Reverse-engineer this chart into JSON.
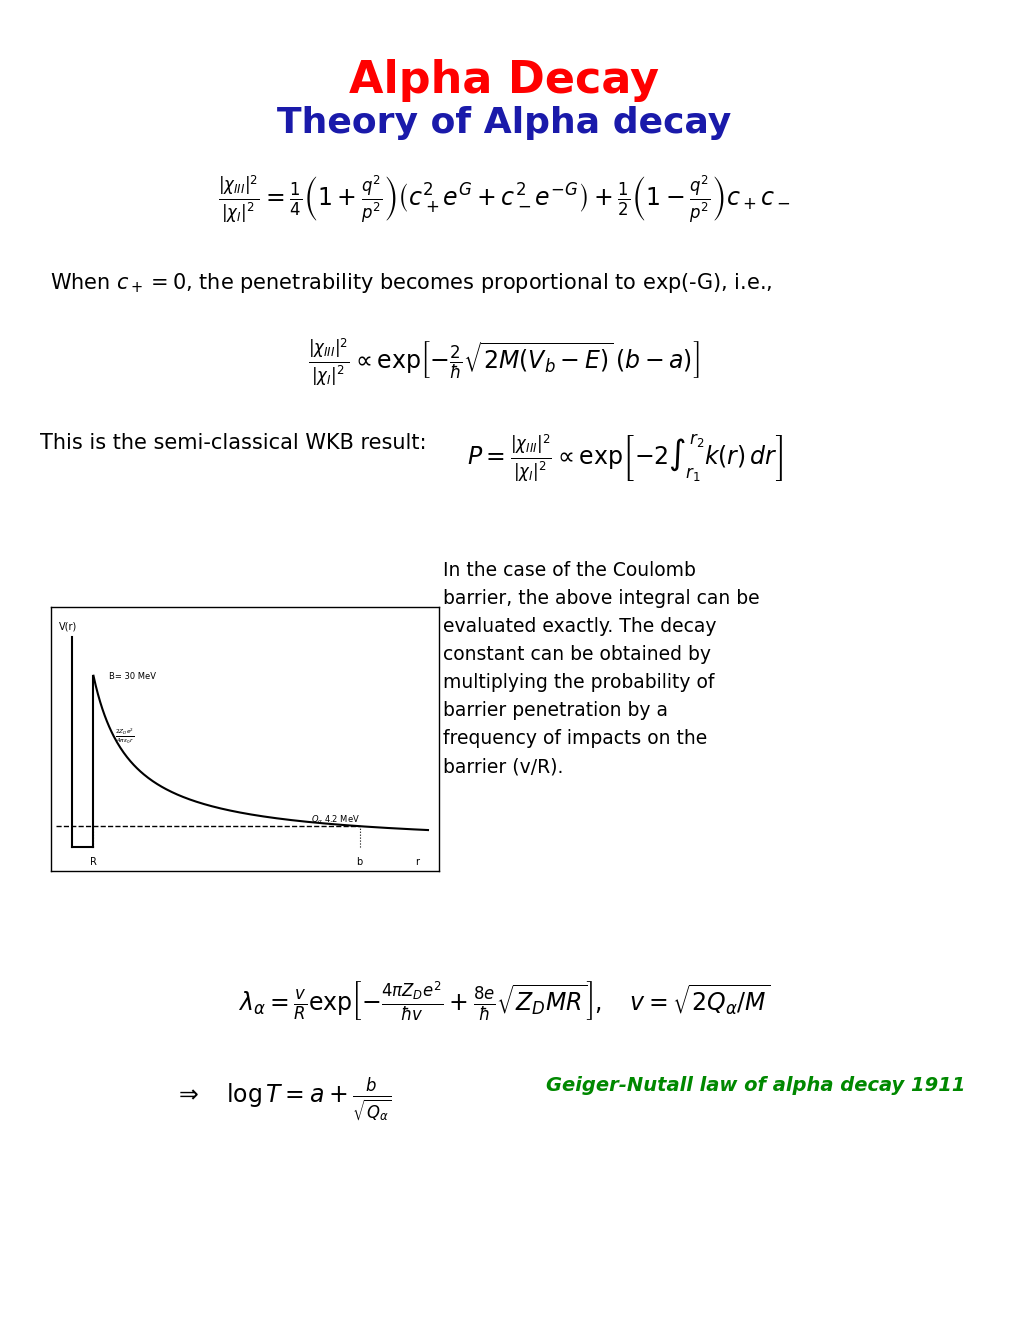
{
  "title1": "Alpha Decay",
  "title2": "Theory of Alpha decay",
  "title1_color": "#FF0000",
  "title2_color": "#1a1aaa",
  "bg_color": "#ffffff",
  "eq1": "\\frac{|\\chi_{III}|^2}{|\\chi_I|^2} = \\frac{1}{4}\\left(1+\\frac{q^2}{p^2}\\right)\\left(c_+^2 e^G + c_-^2 e^{-G}\\right) + \\frac{1}{2}\\left(1-\\frac{q^2}{p^2}\\right)c_+ c_-",
  "text1": "When $c_+=0$, the penetrability becomes proportional to exp(-G), i.e.,",
  "eq2": "\\frac{|\\chi_{III}|^2}{|\\chi_I|^2} \\propto \\exp\\!\\left[-\\frac{2}{\\hbar}\\sqrt{2M(V_b-E)}\\,(b-a)\\right]",
  "text2": "This is the semi-classical WKB result:",
  "eq3": "P = \\frac{|\\chi_{III}|^2}{|\\chi_I|^2} \\propto \\exp\\!\\left[-2\\int_{r_1}^{r_2} k(r)\\,dr\\right]",
  "text3": "In the case of the Coulomb barrier, the above integral can be evaluated exactly. The decay constant can be obtained by multiplying the probability of barrier penetration by a frequency of impacts on the barrier (v/R).",
  "eq4": "\\lambda_\\alpha = \\frac{v}{R}\\exp\\!\\left[-\\frac{4\\pi Z_D e^2}{\\hbar v} + \\frac{8e}{\\hbar}\\sqrt{Z_D MR}\\right], \\quad v = \\sqrt{2Q_\\alpha/M}",
  "eq5": "\\Rightarrow \\quad \\log T = a + \\frac{b}{\\sqrt{Q_\\alpha}}",
  "text4": "Geiger-Nutall law of alpha decay 1911",
  "text4_color": "#008800"
}
